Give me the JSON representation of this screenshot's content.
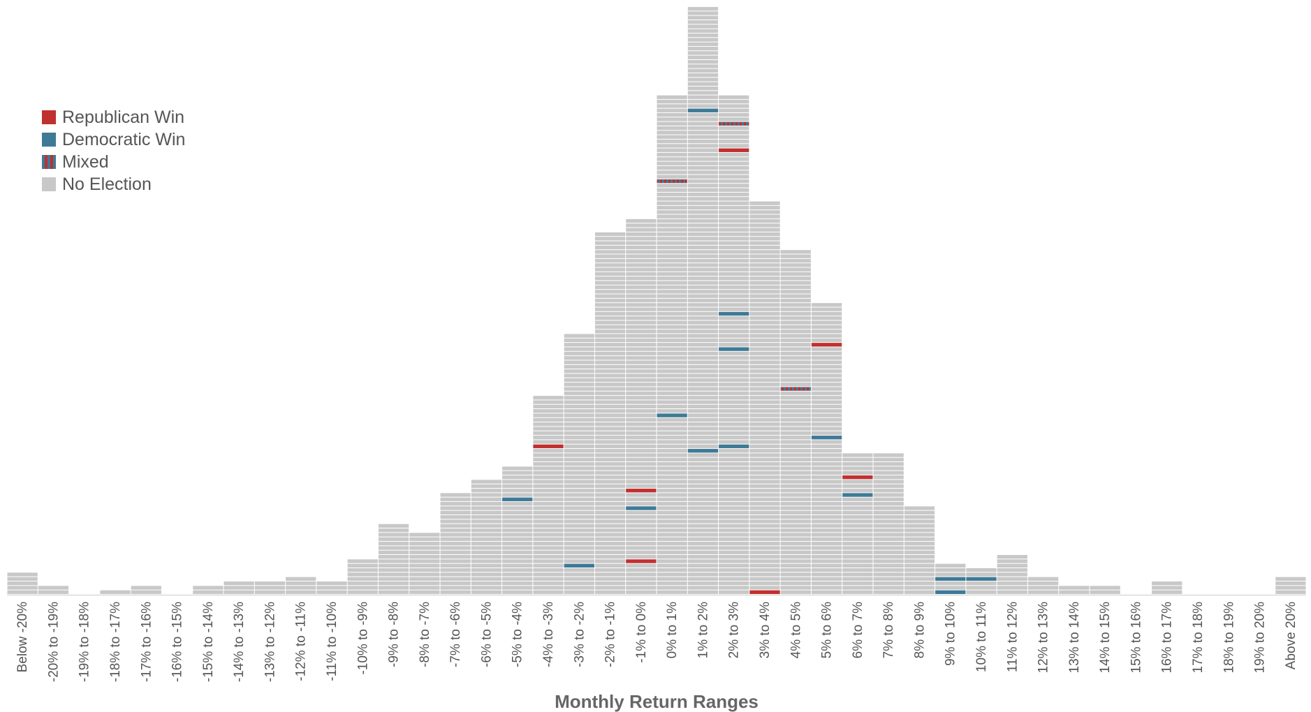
{
  "chart_data": {
    "type": "bar",
    "title": "",
    "xlabel": "Monthly Return Ranges",
    "ylabel": "",
    "grid": false,
    "legend_position": "top-left",
    "ylim": [
      0,
      133
    ],
    "categories": [
      "Below -20%",
      "-20% to -19%",
      "-19% to -18%",
      "-18% to -17%",
      "-17% to -16%",
      "-16% to -15%",
      "-15% to -14%",
      "-14% to -13%",
      "-13% to -12%",
      "-12% to -11%",
      "-11% to -10%",
      "-10% to -9%",
      "-9% to -8%",
      "-8% to -7%",
      "-7% to -6%",
      "-6% to -5%",
      "-5% to -4%",
      "-4% to -3%",
      "-3% to -2%",
      "-2% to -1%",
      "-1% to 0%",
      "0% to 1%",
      "1% to 2%",
      "2% to 3%",
      "3% to 4%",
      "4% to 5%",
      "5% to 6%",
      "6% to 7%",
      "7% to 8%",
      "8% to 9%",
      "9% to 10%",
      "10% to 11%",
      "11% to 12%",
      "12% to 13%",
      "13% to 14%",
      "14% to 15%",
      "15% to 16%",
      "16% to 17%",
      "17% to 18%",
      "18% to 19%",
      "19% to 20%",
      "Above 20%"
    ],
    "values": [
      5,
      2,
      0,
      1,
      2,
      0,
      2,
      3,
      3,
      4,
      3,
      8,
      16,
      14,
      23,
      26,
      29,
      45,
      59,
      82,
      85,
      113,
      133,
      113,
      89,
      78,
      66,
      32,
      32,
      20,
      7,
      6,
      9,
      4,
      2,
      2,
      0,
      3,
      0,
      0,
      0,
      4
    ],
    "series": [
      {
        "name": "Republican Win",
        "color": "#c0302f",
        "positions": [
          [
            17,
            33
          ],
          [
            20,
            23
          ],
          [
            20,
            7
          ],
          [
            23,
            100
          ],
          [
            24,
            0
          ],
          [
            26,
            56
          ],
          [
            27,
            26
          ]
        ]
      },
      {
        "name": "Democratic Win",
        "color": "#3e7a96",
        "positions": [
          [
            16,
            21
          ],
          [
            18,
            6
          ],
          [
            20,
            19
          ],
          [
            21,
            40
          ],
          [
            22,
            109
          ],
          [
            22,
            32
          ],
          [
            23,
            63
          ],
          [
            23,
            55
          ],
          [
            23,
            33
          ],
          [
            26,
            35
          ],
          [
            27,
            22
          ],
          [
            30,
            3
          ],
          [
            30,
            0
          ],
          [
            31,
            3
          ]
        ]
      },
      {
        "name": "Mixed",
        "color": "#3e7a96",
        "stripe_color": "#c0302f",
        "positions": [
          [
            21,
            93
          ],
          [
            23,
            106
          ],
          [
            25,
            46
          ]
        ]
      },
      {
        "name": "No Election",
        "color": "#c8c8c8"
      }
    ]
  }
}
